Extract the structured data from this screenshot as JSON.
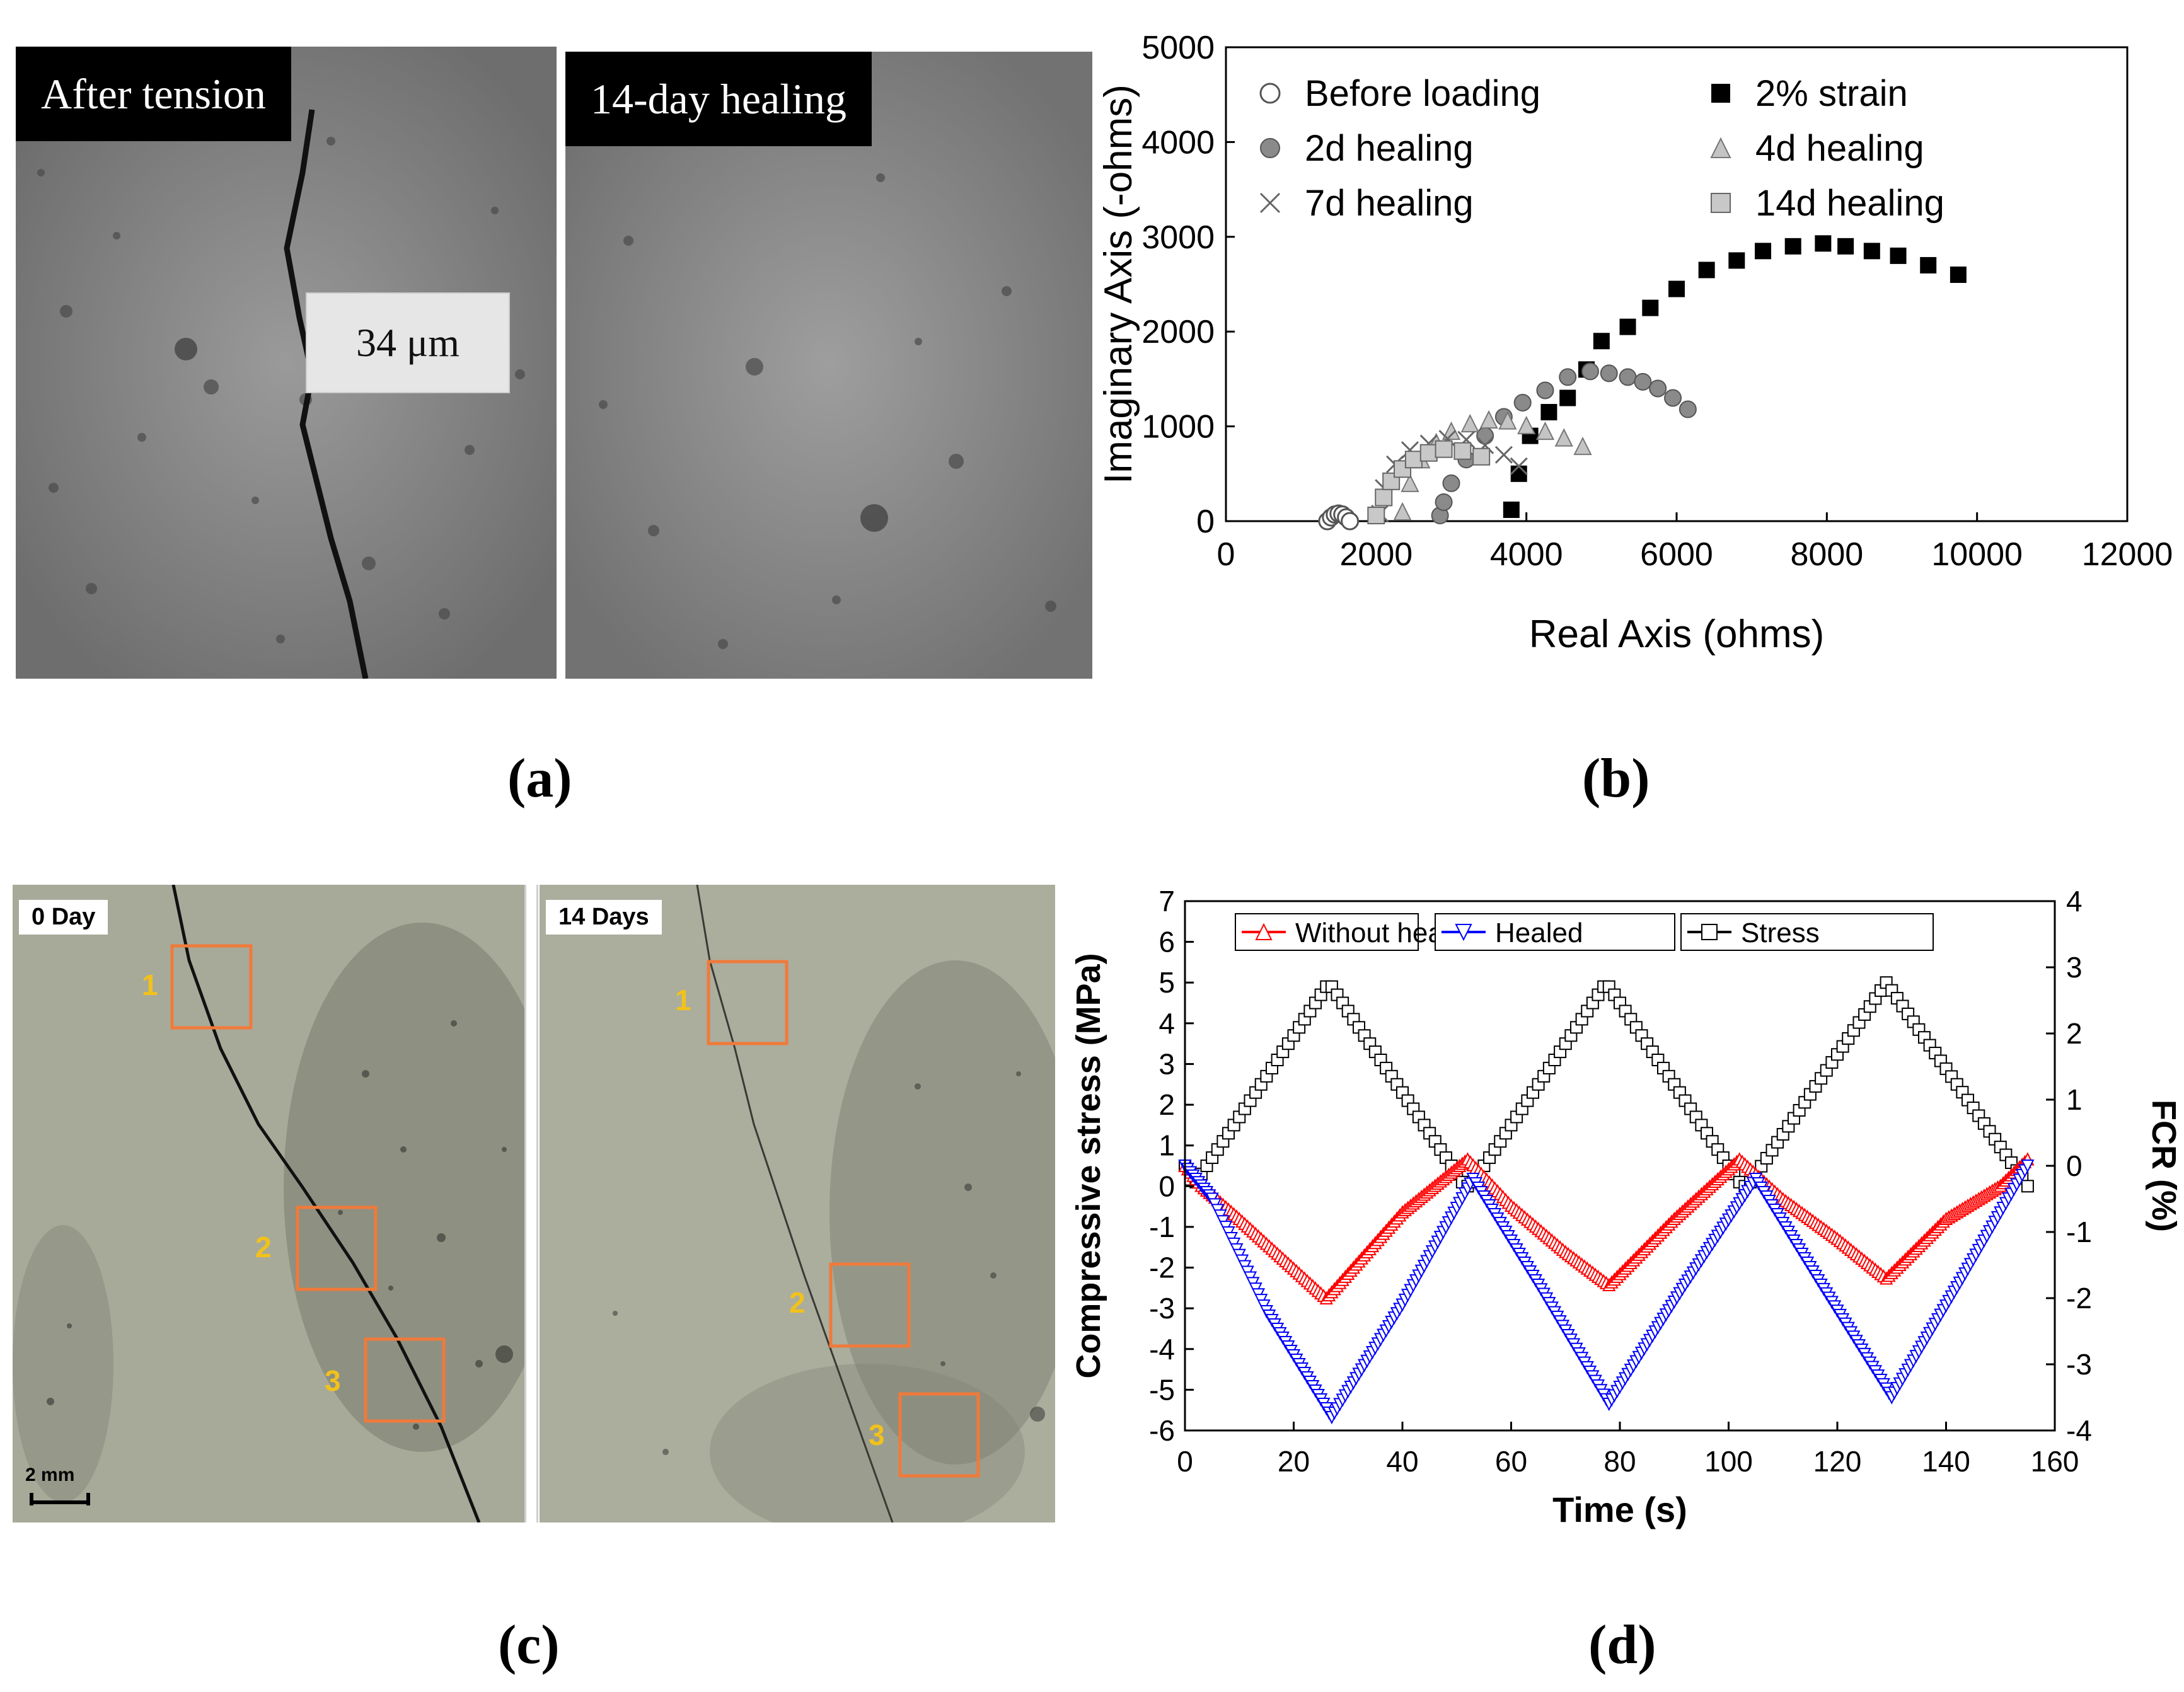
{
  "panel_labels": {
    "a": "(a)",
    "b": "(b)",
    "c": "(c)",
    "d": "(d)"
  },
  "panel_a": {
    "left_title": "After tension",
    "right_title": "14-day healing",
    "crack_width": "34 μm"
  },
  "panel_c": {
    "left_title": "0 Day",
    "right_title": "14 Days",
    "region_labels": [
      "1",
      "2",
      "3"
    ],
    "scale_bar": "2 mm",
    "colors": {
      "box": "#f07a3a",
      "number": "#f2c21b"
    }
  },
  "chart_data": [
    {
      "id": "b",
      "type": "scatter",
      "xlabel": "Real Axis (ohms)",
      "ylabel": "Imaginary Axis (-ohms)",
      "xlim": [
        0,
        12000
      ],
      "ylim": [
        0,
        5000
      ],
      "xticks": [
        0,
        2000,
        4000,
        6000,
        8000,
        10000,
        12000
      ],
      "yticks": [
        0,
        1000,
        2000,
        3000,
        4000,
        5000
      ],
      "legend": [
        {
          "label": "Before loading",
          "marker": "open-circle"
        },
        {
          "label": "2% strain",
          "marker": "filled-square"
        },
        {
          "label": "2d healing",
          "marker": "grey-circle"
        },
        {
          "label": "4d healing",
          "marker": "grey-triangle"
        },
        {
          "label": "7d healing",
          "marker": "cross"
        },
        {
          "label": "14d healing",
          "marker": "grey-square"
        }
      ],
      "series": [
        {
          "name": "Before loading",
          "marker": "open-circle",
          "x": [
            1350,
            1400,
            1450,
            1500,
            1550,
            1600,
            1650
          ],
          "y": [
            0,
            40,
            70,
            80,
            70,
            40,
            0
          ]
        },
        {
          "name": "2% strain",
          "marker": "filled-square",
          "x": [
            3800,
            3900,
            4050,
            4300,
            4550,
            4800,
            5000,
            5350,
            5650,
            6000,
            6400,
            6800,
            7150,
            7550,
            7950,
            8250,
            8600,
            8950,
            9350,
            9750
          ],
          "y": [
            120,
            500,
            900,
            1150,
            1300,
            1600,
            1900,
            2050,
            2250,
            2450,
            2650,
            2750,
            2850,
            2900,
            2930,
            2900,
            2850,
            2800,
            2700,
            2600
          ]
        },
        {
          "name": "2d healing",
          "marker": "grey-circle",
          "x": [
            2850,
            2900,
            3000,
            3200,
            3450,
            3700,
            3950,
            4250,
            4550,
            4850,
            5100,
            5350,
            5550,
            5750,
            5950,
            6150
          ],
          "y": [
            60,
            200,
            400,
            650,
            900,
            1100,
            1250,
            1380,
            1520,
            1580,
            1560,
            1520,
            1470,
            1400,
            1300,
            1180
          ]
        },
        {
          "name": "4d healing",
          "marker": "grey-triangle",
          "x": [
            2350,
            2450,
            2600,
            2800,
            3000,
            3250,
            3500,
            3750,
            4000,
            4250,
            4500,
            4750
          ],
          "y": [
            100,
            400,
            650,
            830,
            950,
            1030,
            1070,
            1060,
            1010,
            950,
            880,
            790
          ]
        },
        {
          "name": "7d healing",
          "marker": "cross",
          "x": [
            2050,
            2100,
            2250,
            2450,
            2700,
            2950,
            3200,
            3450,
            3700,
            3900
          ],
          "y": [
            80,
            350,
            600,
            750,
            820,
            870,
            860,
            800,
            700,
            580
          ]
        },
        {
          "name": "14d healing",
          "marker": "grey-square",
          "x": [
            2000,
            2100,
            2200,
            2350,
            2500,
            2700,
            2900,
            3150,
            3400
          ],
          "y": [
            60,
            250,
            420,
            550,
            650,
            720,
            760,
            740,
            680
          ]
        }
      ]
    },
    {
      "id": "d",
      "type": "line",
      "xlabel": "Time (s)",
      "ylabel": "Compressive stress (MPa)",
      "y2label": "FCR (%)",
      "xlim": [
        0,
        160
      ],
      "ylim": [
        -6,
        7
      ],
      "y2lim": [
        -4,
        4
      ],
      "xticks": [
        0,
        20,
        40,
        60,
        80,
        100,
        120,
        140,
        160
      ],
      "yticks": [
        -6,
        -5,
        -4,
        -3,
        -2,
        -1,
        0,
        1,
        2,
        3,
        4,
        5,
        6,
        7
      ],
      "y2ticks": [
        -4,
        -3,
        -2,
        -1,
        0,
        1,
        2,
        3,
        4
      ],
      "legend": [
        {
          "label": "Without heal",
          "color": "#ff0000",
          "marker": "open-triangle-up"
        },
        {
          "label": "Healed",
          "color": "#0000ff",
          "marker": "open-triangle-down"
        },
        {
          "label": "Stress",
          "color": "#000000",
          "marker": "open-square"
        }
      ],
      "series": [
        {
          "name": "Stress",
          "axis": "left",
          "color": "#000000",
          "x": [
            0,
            1.5,
            26.5,
            51.5,
            52.5,
            77.5,
            102.5,
            103.5,
            129,
            155
          ],
          "y": [
            0.5,
            0,
            5,
            0,
            0,
            5,
            0,
            0,
            5,
            0
          ]
        },
        {
          "name": "Without heal",
          "axis": "right",
          "color": "#ff0000",
          "x": [
            0,
            3,
            10,
            18,
            26,
            40,
            52,
            60,
            70,
            78,
            90,
            102,
            110,
            120,
            129,
            140,
            150,
            155
          ],
          "y": [
            0,
            -0.3,
            -0.8,
            -1.4,
            -2.0,
            -0.7,
            0.1,
            -0.6,
            -1.3,
            -1.8,
            -0.8,
            0.1,
            -0.5,
            -1.1,
            -1.7,
            -0.8,
            -0.3,
            0.1
          ]
        },
        {
          "name": "Healed",
          "axis": "right",
          "color": "#0000ff",
          "x": [
            0,
            5,
            15,
            27,
            40,
            53,
            65,
            78,
            92,
            105,
            117,
            130,
            143,
            155
          ],
          "y": [
            0,
            -0.5,
            -2.2,
            -3.8,
            -2.1,
            -0.2,
            -1.8,
            -3.6,
            -1.8,
            -0.2,
            -1.8,
            -3.5,
            -1.7,
            0
          ]
        }
      ]
    }
  ]
}
